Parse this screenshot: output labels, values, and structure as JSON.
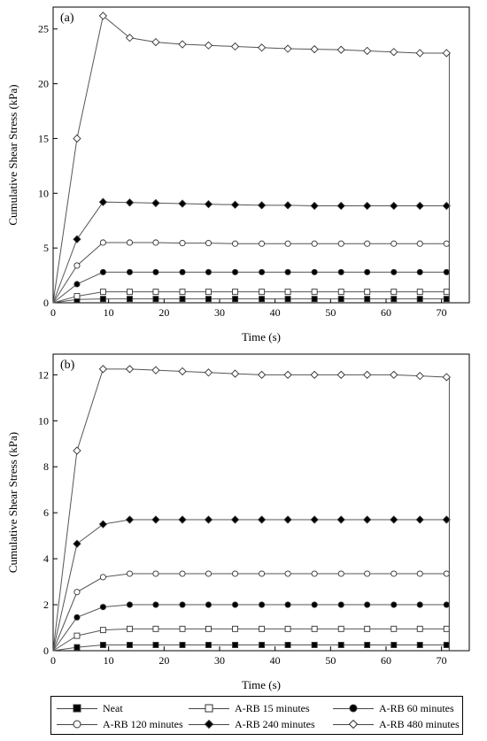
{
  "chart_data": [
    {
      "type": "line",
      "panel_label": "(a)",
      "xlabel": "Time (s)",
      "ylabel": "Cumulative Shear Stress (kPa)",
      "xlim": [
        0,
        75
      ],
      "ylim": [
        0,
        27
      ],
      "x_ticks": [
        0,
        10,
        20,
        30,
        40,
        50,
        60,
        70
      ],
      "y_ticks": [
        0,
        5,
        10,
        15,
        20,
        25
      ],
      "end_x": 71.4,
      "x": [
        4.3,
        9.0,
        13.8,
        18.5,
        23.3,
        28.0,
        32.8,
        37.6,
        42.3,
        47.1,
        51.9,
        56.6,
        61.4,
        66.1,
        70.9
      ],
      "series": [
        {
          "name": "Neat",
          "marker": "square",
          "filled": true,
          "values": [
            0.3,
            0.35,
            0.35,
            0.35,
            0.35,
            0.35,
            0.35,
            0.35,
            0.35,
            0.35,
            0.35,
            0.35,
            0.35,
            0.35,
            0.35
          ]
        },
        {
          "name": "A-RB 15 minutes",
          "marker": "square",
          "filled": false,
          "values": [
            0.6,
            1.0,
            1.0,
            1.0,
            1.0,
            1.0,
            1.0,
            1.0,
            1.0,
            1.0,
            1.0,
            1.0,
            1.0,
            1.0,
            1.0
          ]
        },
        {
          "name": "A-RB 60 minutes",
          "marker": "circle",
          "filled": true,
          "values": [
            1.7,
            2.8,
            2.8,
            2.8,
            2.8,
            2.8,
            2.8,
            2.8,
            2.8,
            2.8,
            2.8,
            2.8,
            2.8,
            2.8,
            2.8
          ]
        },
        {
          "name": "A-RB 120 minutes",
          "marker": "circle",
          "filled": false,
          "values": [
            3.4,
            5.5,
            5.5,
            5.5,
            5.45,
            5.45,
            5.4,
            5.4,
            5.4,
            5.4,
            5.4,
            5.4,
            5.4,
            5.4,
            5.4
          ]
        },
        {
          "name": "A-RB 240 minutes",
          "marker": "diamond",
          "filled": true,
          "values": [
            5.8,
            9.2,
            9.15,
            9.1,
            9.05,
            9.0,
            8.95,
            8.9,
            8.9,
            8.85,
            8.85,
            8.85,
            8.85,
            8.85,
            8.85
          ]
        },
        {
          "name": "A-RB 480 minutes",
          "marker": "diamond",
          "filled": false,
          "values": [
            15.0,
            26.2,
            24.2,
            23.8,
            23.6,
            23.5,
            23.4,
            23.3,
            23.2,
            23.15,
            23.1,
            23.0,
            22.9,
            22.8,
            22.8
          ]
        }
      ]
    },
    {
      "type": "line",
      "panel_label": "(b)",
      "xlabel": "Time (s)",
      "ylabel": "Cumulative Shear Stress (kPa)",
      "xlim": [
        0,
        75
      ],
      "ylim": [
        0,
        12.9
      ],
      "x_ticks": [
        0,
        10,
        20,
        30,
        40,
        50,
        60,
        70
      ],
      "y_ticks": [
        0,
        2,
        4,
        6,
        8,
        10,
        12
      ],
      "end_x": 71.4,
      "x": [
        4.3,
        9.0,
        13.8,
        18.5,
        23.3,
        28.0,
        32.8,
        37.6,
        42.3,
        47.1,
        51.9,
        56.6,
        61.4,
        66.1,
        70.9
      ],
      "series": [
        {
          "name": "Neat",
          "marker": "square",
          "filled": true,
          "values": [
            0.15,
            0.25,
            0.25,
            0.25,
            0.25,
            0.25,
            0.25,
            0.25,
            0.25,
            0.25,
            0.25,
            0.25,
            0.25,
            0.25,
            0.25
          ]
        },
        {
          "name": "A-RB 15 minutes",
          "marker": "square",
          "filled": false,
          "values": [
            0.65,
            0.9,
            0.95,
            0.95,
            0.95,
            0.95,
            0.95,
            0.95,
            0.95,
            0.95,
            0.95,
            0.95,
            0.95,
            0.95,
            0.95
          ]
        },
        {
          "name": "A-RB 60 minutes",
          "marker": "circle",
          "filled": true,
          "values": [
            1.45,
            1.9,
            2.0,
            2.0,
            2.0,
            2.0,
            2.0,
            2.0,
            2.0,
            2.0,
            2.0,
            2.0,
            2.0,
            2.0,
            2.0
          ]
        },
        {
          "name": "A-RB 120 minutes",
          "marker": "circle",
          "filled": false,
          "values": [
            2.55,
            3.2,
            3.35,
            3.35,
            3.35,
            3.35,
            3.35,
            3.35,
            3.35,
            3.35,
            3.35,
            3.35,
            3.35,
            3.35,
            3.35
          ]
        },
        {
          "name": "A-RB 240 minutes",
          "marker": "diamond",
          "filled": true,
          "values": [
            4.65,
            5.5,
            5.7,
            5.7,
            5.7,
            5.7,
            5.7,
            5.7,
            5.7,
            5.7,
            5.7,
            5.7,
            5.7,
            5.7,
            5.7
          ]
        },
        {
          "name": "A-RB 480 minutes",
          "marker": "diamond",
          "filled": false,
          "values": [
            8.7,
            12.25,
            12.25,
            12.2,
            12.15,
            12.1,
            12.05,
            12.0,
            12.0,
            12.0,
            12.0,
            12.0,
            12.0,
            11.95,
            11.9
          ]
        }
      ]
    }
  ],
  "legend": {
    "entries": [
      {
        "label": "Neat",
        "marker": "square",
        "filled": true
      },
      {
        "label": "A-RB 15 minutes",
        "marker": "square",
        "filled": false
      },
      {
        "label": "A-RB 60 minutes",
        "marker": "circle",
        "filled": true
      },
      {
        "label": "A-RB 120 minutes",
        "marker": "circle",
        "filled": false
      },
      {
        "label": "A-RB 240 minutes",
        "marker": "diamond",
        "filled": true
      },
      {
        "label": "A-RB 480 minutes",
        "marker": "diamond",
        "filled": false
      }
    ]
  },
  "colors": {
    "line": "#555555",
    "marker_stroke": "#333333",
    "axis": "#000000"
  }
}
